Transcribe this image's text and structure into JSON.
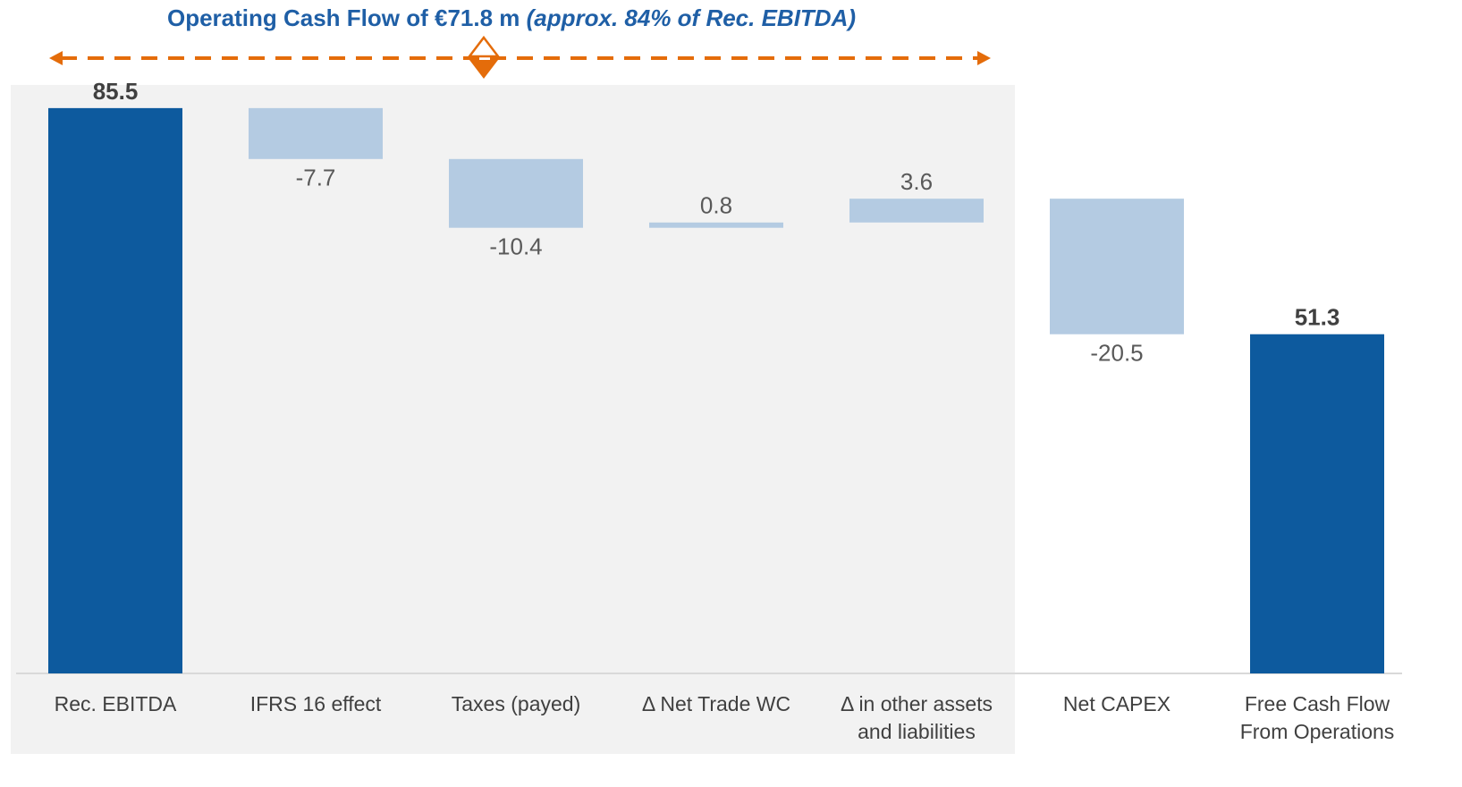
{
  "chart_data": {
    "type": "waterfall",
    "title": "Operating Cash Flow of €71.8 m",
    "title_note": "(approx. 84% of Rec. EBITDA)",
    "categories": [
      "Rec. EBITDA",
      "IFRS 16 effect",
      "Taxes (payed)",
      "Δ Net Trade WC",
      "Δ in other assets and liabilities",
      "Net CAPEX",
      "Free Cash Flow From Operations"
    ],
    "values": [
      85.5,
      -7.7,
      -10.4,
      0.8,
      3.6,
      -20.5,
      51.3
    ],
    "measures": [
      "total",
      "relative",
      "relative",
      "relative",
      "relative",
      "relative",
      "total"
    ],
    "total_color": "#0d5a9e",
    "delta_color": "#b4cbe2",
    "ylim": [
      0,
      89
    ]
  }
}
